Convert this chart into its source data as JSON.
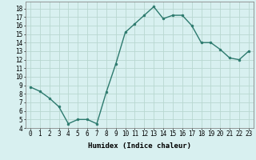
{
  "x": [
    0,
    1,
    2,
    3,
    4,
    5,
    6,
    7,
    8,
    9,
    10,
    11,
    12,
    13,
    14,
    15,
    16,
    17,
    18,
    19,
    20,
    21,
    22,
    23
  ],
  "y": [
    8.8,
    8.3,
    7.5,
    6.5,
    4.5,
    5.0,
    5.0,
    4.5,
    8.2,
    11.5,
    15.2,
    16.2,
    17.2,
    18.2,
    16.8,
    17.2,
    17.2,
    16.0,
    14.0,
    14.0,
    13.2,
    12.2,
    12.0,
    13.0
  ],
  "line_color": "#2d7a6e",
  "marker": "o",
  "markersize": 2,
  "linewidth": 1.0,
  "bg_color": "#d8f0f0",
  "grid_color": "#b8d8d0",
  "xlabel": "Humidex (Indice chaleur)",
  "xlim": [
    -0.5,
    23.5
  ],
  "ylim": [
    4,
    18.8
  ],
  "yticks": [
    4,
    5,
    6,
    7,
    8,
    9,
    10,
    11,
    12,
    13,
    14,
    15,
    16,
    17,
    18
  ],
  "xticks": [
    0,
    1,
    2,
    3,
    4,
    5,
    6,
    7,
    8,
    9,
    10,
    11,
    12,
    13,
    14,
    15,
    16,
    17,
    18,
    19,
    20,
    21,
    22,
    23
  ],
  "tick_fontsize": 5.5,
  "label_fontsize": 6.5
}
